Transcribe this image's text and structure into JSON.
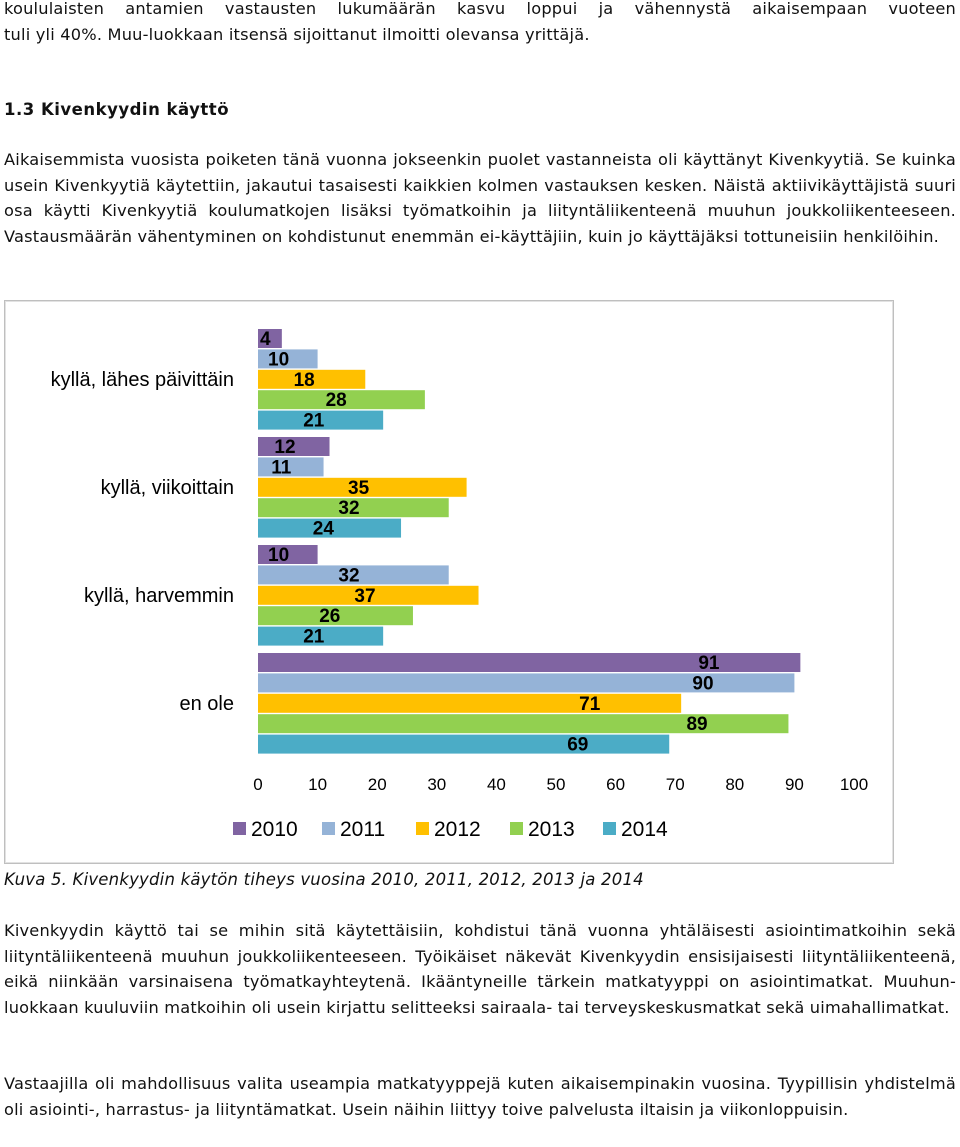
{
  "intro": {
    "line1": "koululaisten antamien vastausten lukumäärän kasvu loppui ja vähennystä aikaisempaan vuoteen",
    "line2": "tuli yli 40%. Muu-luokkaan itsensä sijoittanut ilmoitti olevansa yrittäjä."
  },
  "section": {
    "number": "1.3",
    "title": "Kivenkyydin käyttö"
  },
  "paragraph1": "Aikaisemmista vuosista poiketen tänä vuonna jokseenkin puolet vastanneista oli käyttänyt Kivenkyytiä. Se kuinka usein Kivenkyytiä käytettiin, jakautui tasaisesti kaikkien kolmen vastauksen kesken. Näistä aktiivikäyttäjistä suuri osa käytti Kivenkyytiä koulumatkojen lisäksi työmatkoihin ja liityntäliikenteenä muuhun joukkoliikenteeseen. Vastausmäärän vähentyminen on kohdistunut enemmän ei-käyttäjiin, kuin jo käyttäjäksi tottuneisiin henkilöihin.",
  "caption": "Kuva 5. Kivenkyydin käytön tiheys vuosina 2010, 2011, 2012, 2013 ja 2014",
  "paragraph2": "Kivenkyydin käyttö tai se mihin sitä käytettäisiin, kohdistui tänä vuonna yhtäläisesti asiointimatkoihin sekä liityntäliikenteenä muuhun joukkoliikenteeseen. Työikäiset näkevät Kivenkyydin ensisijaisesti liityntäliikenteenä, eikä niinkään varsinaisena työmatkayhteytenä. Ikääntyneille tärkein matkatyyppi on asiointimatkat. Muuhun-luokkaan kuuluviin matkoihin oli usein kirjattu selitteeksi sairaala- tai terveyskeskusmatkat sekä uimahallimatkat.",
  "paragraph3": "Vastaajilla oli mahdollisuus valita useampia matkatyyppejä kuten aikaisempinakin vuosina. Tyypillisin yhdistelmä oli asiointi-, harrastus- ja liityntämatkat. Usein näihin liittyy toive palvelusta iltaisin ja viikonloppuisin.",
  "chart_data": {
    "type": "bar",
    "orientation": "horizontal",
    "categories": [
      "kyllä, lähes päivittäin",
      "kyllä, viikoittain",
      "kyllä, harvemmin",
      "en ole"
    ],
    "series": [
      {
        "name": "2010",
        "color": "#8064a2",
        "values": [
          4,
          12,
          10,
          91
        ]
      },
      {
        "name": "2011",
        "color": "#95b3d7",
        "values": [
          10,
          11,
          32,
          90
        ]
      },
      {
        "name": "2012",
        "color": "#ffc000",
        "values": [
          18,
          35,
          37,
          71
        ]
      },
      {
        "name": "2013",
        "color": "#92d050",
        "values": [
          28,
          32,
          26,
          89
        ]
      },
      {
        "name": "2014",
        "color": "#4bacc6",
        "values": [
          21,
          24,
          21,
          69
        ]
      }
    ],
    "xlim": [
      0,
      100
    ],
    "xticks": [
      "0",
      "10",
      "20",
      "30",
      "40",
      "50",
      "60",
      "70",
      "80",
      "90",
      "100"
    ],
    "data_labels": true,
    "legend_position": "bottom",
    "grid": false
  }
}
